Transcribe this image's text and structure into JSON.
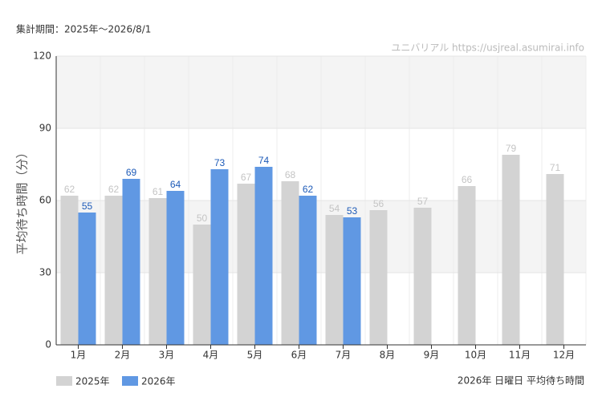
{
  "chart_data": {
    "type": "bar",
    "header": "集計期間：2025年～2026/8/1",
    "watermark": "ユニバリアル  https://usjreal.asumirai.info",
    "ylabel": "平均待ち時間（分）",
    "footer": "2026年 日曜日 平均待ち時間",
    "categories": [
      "1月",
      "2月",
      "3月",
      "4月",
      "5月",
      "6月",
      "7月",
      "8月",
      "9月",
      "10月",
      "11月",
      "12月"
    ],
    "series": [
      {
        "name": "2025年",
        "color": "#d3d3d3",
        "label_color": "#c4c4c4",
        "values": [
          62,
          62,
          61,
          50,
          67,
          68,
          54,
          56,
          57,
          66,
          79,
          71
        ]
      },
      {
        "name": "2026年",
        "color": "#6098e3",
        "label_color": "#1e5bb8",
        "values": [
          55,
          69,
          64,
          73,
          74,
          62,
          53,
          null,
          null,
          null,
          null,
          null
        ]
      }
    ],
    "ylim": [
      0,
      120
    ],
    "yticks": [
      0,
      30,
      60,
      90,
      120
    ],
    "grid": true
  }
}
